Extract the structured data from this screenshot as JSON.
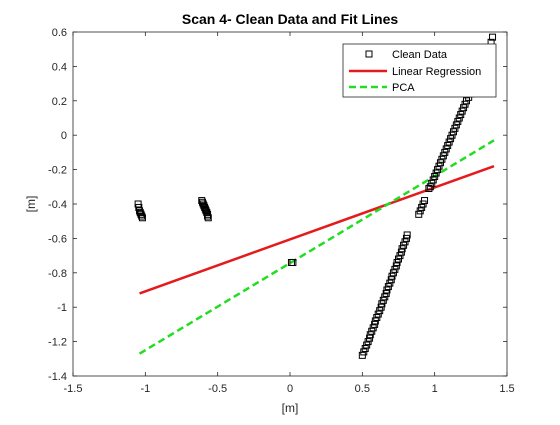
{
  "chart_data": {
    "type": "scatter",
    "title": "Scan 4- Clean Data and Fit Lines",
    "xlabel": "[m]",
    "ylabel": "[m]",
    "xlim": [
      -1.5,
      1.5
    ],
    "ylim": [
      -1.4,
      0.6
    ],
    "xticks": [
      "-1.5",
      "-1",
      "-0.5",
      "0",
      "0.5",
      "1",
      "1.5"
    ],
    "yticks": [
      "-1.4",
      "-1.2",
      "-1",
      "-0.8",
      "-0.6",
      "-0.4",
      "-0.2",
      "0",
      "0.2",
      "0.4",
      "0.6"
    ],
    "grid": false,
    "legend_position": "top-right",
    "colors": {
      "points": "#000000",
      "linear_regression": "#e41a1c",
      "pca": "#22dd22"
    },
    "series": [
      {
        "name": "Clean Data",
        "marker": "square",
        "points": [
          [
            -1.05,
            -0.4
          ],
          [
            -1.045,
            -0.42
          ],
          [
            -1.04,
            -0.44
          ],
          [
            -1.035,
            -0.45
          ],
          [
            -1.03,
            -0.46
          ],
          [
            -1.025,
            -0.47
          ],
          [
            -1.02,
            -0.48
          ],
          [
            -0.61,
            -0.38
          ],
          [
            -0.605,
            -0.39
          ],
          [
            -0.6,
            -0.4
          ],
          [
            -0.595,
            -0.41
          ],
          [
            -0.59,
            -0.42
          ],
          [
            -0.585,
            -0.43
          ],
          [
            -0.58,
            -0.44
          ],
          [
            -0.575,
            -0.45
          ],
          [
            -0.57,
            -0.46
          ],
          [
            -0.57,
            -0.47
          ],
          [
            -0.565,
            -0.48
          ],
          [
            0.01,
            -0.74
          ],
          [
            0.02,
            -0.74
          ],
          [
            0.5,
            -1.28
          ],
          [
            0.51,
            -1.26
          ],
          [
            0.52,
            -1.24
          ],
          [
            0.53,
            -1.22
          ],
          [
            0.54,
            -1.2
          ],
          [
            0.55,
            -1.18
          ],
          [
            0.555,
            -1.16
          ],
          [
            0.565,
            -1.14
          ],
          [
            0.575,
            -1.12
          ],
          [
            0.585,
            -1.1
          ],
          [
            0.59,
            -1.08
          ],
          [
            0.6,
            -1.06
          ],
          [
            0.61,
            -1.04
          ],
          [
            0.62,
            -1.02
          ],
          [
            0.63,
            -1.0
          ],
          [
            0.635,
            -0.98
          ],
          [
            0.645,
            -0.96
          ],
          [
            0.655,
            -0.94
          ],
          [
            0.665,
            -0.92
          ],
          [
            0.67,
            -0.9
          ],
          [
            0.68,
            -0.88
          ],
          [
            0.69,
            -0.86
          ],
          [
            0.7,
            -0.84
          ],
          [
            0.705,
            -0.82
          ],
          [
            0.715,
            -0.8
          ],
          [
            0.725,
            -0.78
          ],
          [
            0.735,
            -0.76
          ],
          [
            0.74,
            -0.74
          ],
          [
            0.75,
            -0.72
          ],
          [
            0.76,
            -0.7
          ],
          [
            0.77,
            -0.68
          ],
          [
            0.775,
            -0.66
          ],
          [
            0.785,
            -0.64
          ],
          [
            0.795,
            -0.62
          ],
          [
            0.805,
            -0.6
          ],
          [
            0.81,
            -0.58
          ],
          [
            0.89,
            -0.46
          ],
          [
            0.9,
            -0.44
          ],
          [
            0.91,
            -0.42
          ],
          [
            0.92,
            -0.4
          ],
          [
            0.93,
            -0.38
          ],
          [
            0.96,
            -0.31
          ],
          [
            0.97,
            -0.3
          ],
          [
            0.98,
            -0.28
          ],
          [
            0.99,
            -0.26
          ],
          [
            1.0,
            -0.24
          ],
          [
            1.01,
            -0.22
          ],
          [
            1.02,
            -0.2
          ],
          [
            1.03,
            -0.18
          ],
          [
            1.04,
            -0.16
          ],
          [
            1.05,
            -0.14
          ],
          [
            1.06,
            -0.12
          ],
          [
            1.07,
            -0.1
          ],
          [
            1.08,
            -0.08
          ],
          [
            1.09,
            -0.06
          ],
          [
            1.1,
            -0.04
          ],
          [
            1.11,
            -0.02
          ],
          [
            1.12,
            0.0
          ],
          [
            1.13,
            0.02
          ],
          [
            1.14,
            0.04
          ],
          [
            1.15,
            0.06
          ],
          [
            1.16,
            0.08
          ],
          [
            1.17,
            0.1
          ],
          [
            1.18,
            0.12
          ],
          [
            1.19,
            0.14
          ],
          [
            1.2,
            0.16
          ],
          [
            1.21,
            0.18
          ],
          [
            1.22,
            0.2
          ],
          [
            1.235,
            0.22
          ],
          [
            1.25,
            0.24
          ],
          [
            1.26,
            0.26
          ],
          [
            1.39,
            0.54
          ],
          [
            1.4,
            0.57
          ]
        ]
      },
      {
        "name": "Linear Regression",
        "line": "solid",
        "x": [
          -1.04,
          1.41
        ],
        "y": [
          -0.92,
          -0.18
        ]
      },
      {
        "name": "PCA",
        "line": "dashed",
        "x": [
          -1.04,
          1.41
        ],
        "y": [
          -1.27,
          -0.03
        ]
      }
    ]
  }
}
